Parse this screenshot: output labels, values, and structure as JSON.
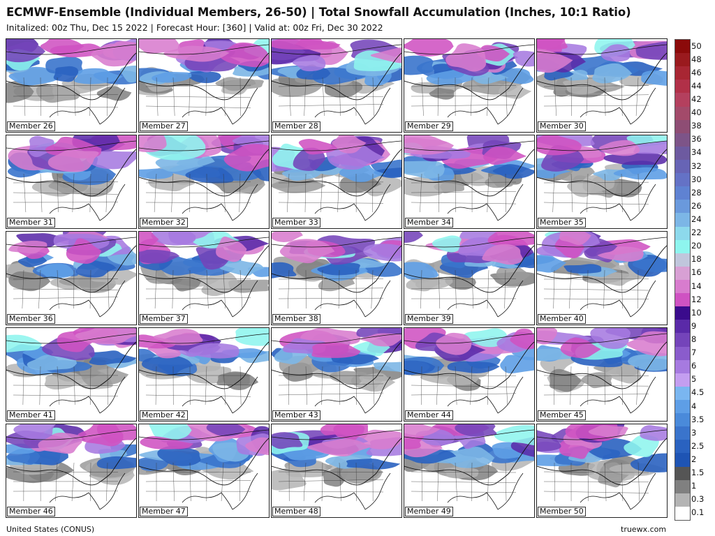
{
  "header": {
    "title": "ECMWF-Ensemble (Individual Members, 26-50) | Total Snowfall Accumulation (Inches, 10:1 Ratio)",
    "subtitle": "Initalized: 00z Thu, Dec 15 2022  |  Forecast Hour: [360]  |  Valid at: 00z Fri, Dec 30 2022"
  },
  "panels": [
    {
      "label": "Member 26"
    },
    {
      "label": "Member 27"
    },
    {
      "label": "Member 28"
    },
    {
      "label": "Member 29"
    },
    {
      "label": "Member 30"
    },
    {
      "label": "Member 31"
    },
    {
      "label": "Member 32"
    },
    {
      "label": "Member 33"
    },
    {
      "label": "Member 34"
    },
    {
      "label": "Member 35"
    },
    {
      "label": "Member 36"
    },
    {
      "label": "Member 37"
    },
    {
      "label": "Member 38"
    },
    {
      "label": "Member 39"
    },
    {
      "label": "Member 40"
    },
    {
      "label": "Member 41"
    },
    {
      "label": "Member 42"
    },
    {
      "label": "Member 43"
    },
    {
      "label": "Member 44"
    },
    {
      "label": "Member 45"
    },
    {
      "label": "Member 46"
    },
    {
      "label": "Member 47"
    },
    {
      "label": "Member 48"
    },
    {
      "label": "Member 49"
    },
    {
      "label": "Member 50"
    }
  ],
  "colorbar": {
    "levels": [
      {
        "label": "50",
        "color": "#8b0a0a"
      },
      {
        "label": "48",
        "color": "#9a1a1e"
      },
      {
        "label": "46",
        "color": "#a82633"
      },
      {
        "label": "44",
        "color": "#b13048"
      },
      {
        "label": "42",
        "color": "#b4405e"
      },
      {
        "label": "40",
        "color": "#a34a6a"
      },
      {
        "label": "38",
        "color": "#8e4d74"
      },
      {
        "label": "36",
        "color": "#7d5488"
      },
      {
        "label": "34",
        "color": "#6d5aa0"
      },
      {
        "label": "32",
        "color": "#6764b5"
      },
      {
        "label": "30",
        "color": "#6472c6"
      },
      {
        "label": "28",
        "color": "#5f82d2"
      },
      {
        "label": "26",
        "color": "#6a99dc"
      },
      {
        "label": "24",
        "color": "#7cb6e6"
      },
      {
        "label": "22",
        "color": "#8dd9ec"
      },
      {
        "label": "20",
        "color": "#8ef5ee"
      },
      {
        "label": "18",
        "color": "#c0c6dc"
      },
      {
        "label": "16",
        "color": "#d8a0d4"
      },
      {
        "label": "14",
        "color": "#d87cce"
      },
      {
        "label": "12",
        "color": "#cf52c2"
      },
      {
        "label": "10",
        "color": "#3a0b8c"
      },
      {
        "label": "9",
        "color": "#5a2aa8"
      },
      {
        "label": "8",
        "color": "#7444ba"
      },
      {
        "label": "7",
        "color": "#8a5ccc"
      },
      {
        "label": "6",
        "color": "#a67ae0"
      },
      {
        "label": "5",
        "color": "#c49ef0"
      },
      {
        "label": "4.5",
        "color": "#7ab6f0"
      },
      {
        "label": "4",
        "color": "#5e9ee6"
      },
      {
        "label": "3.5",
        "color": "#4a8ada"
      },
      {
        "label": "3",
        "color": "#3a74cc"
      },
      {
        "label": "2.5",
        "color": "#2a62c0"
      },
      {
        "label": "2",
        "color": "#1e54b4"
      },
      {
        "label": "1.5",
        "color": "#555555"
      },
      {
        "label": "1",
        "color": "#808080"
      },
      {
        "label": "0.3",
        "color": "#b4b4b4"
      },
      {
        "label": "0.1",
        "color": "#ffffff"
      }
    ]
  },
  "footer": {
    "region": "United States (CONUS)",
    "source": "truewx.com"
  }
}
